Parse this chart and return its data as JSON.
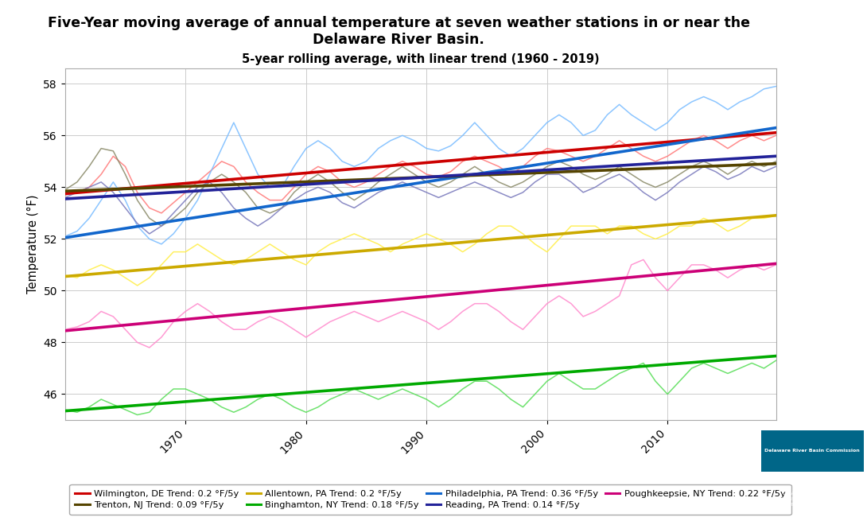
{
  "title_main": "Five-Year moving average of annual temperature at seven weather stations in or near the\nDelaware River Basin.",
  "title_chart": "5-year rolling average, with linear trend (1960 - 2019)",
  "ylabel": "Temperature (°F)",
  "xlim": [
    1960,
    2019
  ],
  "ylim": [
    45.0,
    58.6
  ],
  "yticks": [
    46,
    48,
    50,
    52,
    54,
    56,
    58
  ],
  "xticks": [
    1970,
    1980,
    1990,
    2000,
    2010
  ],
  "background_color": "#ffffff",
  "grid_color": "#cccccc",
  "rolling_colors": [
    "#ff7777",
    "#77bbff",
    "#888866",
    "#7777bb",
    "#ffee44",
    "#ff88cc",
    "#55dd55"
  ],
  "trend_colors": [
    "#cc0000",
    "#1166cc",
    "#554400",
    "#222299",
    "#ccaa00",
    "#cc0077",
    "#00aa00"
  ],
  "trend_rates": [
    0.2,
    0.36,
    0.09,
    0.14,
    0.2,
    0.22,
    0.18
  ],
  "y_starts": [
    53.75,
    52.05,
    53.85,
    53.55,
    50.55,
    48.45,
    45.35
  ],
  "legend_labels": [
    "Wilmington, DE Trend: 0.2 °F/5y",
    "Trenton, NJ Trend: 0.09 °F/5y",
    "Allentown, PA Trend: 0.2 °F/5y",
    "Binghamton, NY Trend: 0.18 °F/5y",
    "Philadelphia, PA Trend: 0.36 °F/5y",
    "Reading, PA Trend: 0.14 °F/5y",
    "Poughkeepsie, NY Trend: 0.22 °F/5y"
  ],
  "legend_colors": [
    "#cc0000",
    "#554400",
    "#ccaa00",
    "#00aa00",
    "#1166cc",
    "#222299",
    "#cc0077"
  ],
  "wilm": [
    53.7,
    53.8,
    54.0,
    54.5,
    55.2,
    54.8,
    53.8,
    53.2,
    53.0,
    53.4,
    53.8,
    54.2,
    54.6,
    55.0,
    54.8,
    54.2,
    53.8,
    53.5,
    53.5,
    54.0,
    54.5,
    54.8,
    54.6,
    54.2,
    54.0,
    54.2,
    54.5,
    54.8,
    55.0,
    54.8,
    54.5,
    54.4,
    54.6,
    55.0,
    55.2,
    55.0,
    54.8,
    54.5,
    54.8,
    55.2,
    55.5,
    55.4,
    55.2,
    55.0,
    55.2,
    55.5,
    55.8,
    55.5,
    55.2,
    55.0,
    55.2,
    55.5,
    55.8,
    56.0,
    55.8,
    55.5,
    55.8,
    56.0,
    55.8,
    56.0
  ],
  "phil": [
    52.1,
    52.3,
    52.8,
    53.5,
    54.2,
    53.5,
    52.5,
    52.0,
    51.8,
    52.2,
    52.8,
    53.5,
    54.5,
    55.5,
    56.5,
    55.5,
    54.5,
    54.0,
    54.0,
    54.8,
    55.5,
    55.8,
    55.5,
    55.0,
    54.8,
    55.0,
    55.5,
    55.8,
    56.0,
    55.8,
    55.5,
    55.4,
    55.6,
    56.0,
    56.5,
    56.0,
    55.5,
    55.2,
    55.5,
    56.0,
    56.5,
    56.8,
    56.5,
    56.0,
    56.2,
    56.8,
    57.2,
    56.8,
    56.5,
    56.2,
    56.5,
    57.0,
    57.3,
    57.5,
    57.3,
    57.0,
    57.3,
    57.5,
    57.8,
    57.9
  ],
  "tren": [
    53.9,
    54.2,
    54.8,
    55.5,
    55.4,
    54.5,
    53.5,
    52.8,
    52.5,
    52.8,
    53.2,
    53.8,
    54.2,
    54.5,
    54.2,
    53.8,
    53.2,
    53.0,
    53.2,
    53.8,
    54.2,
    54.5,
    54.2,
    53.8,
    53.5,
    53.8,
    54.2,
    54.5,
    54.8,
    54.5,
    54.2,
    54.0,
    54.2,
    54.5,
    54.8,
    54.5,
    54.2,
    54.0,
    54.2,
    54.5,
    54.8,
    55.0,
    54.8,
    54.5,
    54.3,
    54.5,
    54.8,
    54.5,
    54.2,
    54.0,
    54.2,
    54.5,
    54.8,
    55.0,
    54.8,
    54.5,
    54.8,
    55.0,
    54.8,
    55.0
  ],
  "read": [
    53.6,
    53.8,
    54.0,
    54.2,
    53.8,
    53.2,
    52.6,
    52.2,
    52.5,
    53.0,
    53.5,
    54.0,
    54.2,
    53.8,
    53.2,
    52.8,
    52.5,
    52.8,
    53.2,
    53.5,
    53.8,
    54.0,
    53.8,
    53.4,
    53.2,
    53.5,
    53.8,
    54.0,
    54.2,
    54.0,
    53.8,
    53.6,
    53.8,
    54.0,
    54.2,
    54.0,
    53.8,
    53.6,
    53.8,
    54.2,
    54.5,
    54.5,
    54.2,
    53.8,
    54.0,
    54.3,
    54.5,
    54.2,
    53.8,
    53.5,
    53.8,
    54.2,
    54.5,
    54.8,
    54.6,
    54.3,
    54.5,
    54.8,
    54.6,
    54.8
  ],
  "alle": [
    50.6,
    50.5,
    50.8,
    51.0,
    50.8,
    50.5,
    50.2,
    50.5,
    51.0,
    51.5,
    51.5,
    51.8,
    51.5,
    51.2,
    51.0,
    51.2,
    51.5,
    51.8,
    51.5,
    51.2,
    51.0,
    51.5,
    51.8,
    52.0,
    52.2,
    52.0,
    51.8,
    51.5,
    51.8,
    52.0,
    52.2,
    52.0,
    51.8,
    51.5,
    51.8,
    52.2,
    52.5,
    52.5,
    52.2,
    51.8,
    51.5,
    52.0,
    52.5,
    52.5,
    52.5,
    52.2,
    52.5,
    52.5,
    52.2,
    52.0,
    52.2,
    52.5,
    52.5,
    52.8,
    52.6,
    52.3,
    52.5,
    52.8,
    52.8,
    52.9
  ],
  "poug": [
    48.5,
    48.6,
    48.8,
    49.2,
    49.0,
    48.5,
    48.0,
    47.8,
    48.2,
    48.8,
    49.2,
    49.5,
    49.2,
    48.8,
    48.5,
    48.5,
    48.8,
    49.0,
    48.8,
    48.5,
    48.2,
    48.5,
    48.8,
    49.0,
    49.2,
    49.0,
    48.8,
    49.0,
    49.2,
    49.0,
    48.8,
    48.5,
    48.8,
    49.2,
    49.5,
    49.5,
    49.2,
    48.8,
    48.5,
    49.0,
    49.5,
    49.8,
    49.5,
    49.0,
    49.2,
    49.5,
    49.8,
    51.0,
    51.2,
    50.5,
    50.0,
    50.5,
    51.0,
    51.0,
    50.8,
    50.5,
    50.8,
    51.0,
    50.8,
    51.0
  ],
  "bing": [
    45.4,
    45.3,
    45.5,
    45.8,
    45.6,
    45.4,
    45.2,
    45.3,
    45.8,
    46.2,
    46.2,
    46.0,
    45.8,
    45.5,
    45.3,
    45.5,
    45.8,
    46.0,
    45.8,
    45.5,
    45.3,
    45.5,
    45.8,
    46.0,
    46.2,
    46.0,
    45.8,
    46.0,
    46.2,
    46.0,
    45.8,
    45.5,
    45.8,
    46.2,
    46.5,
    46.5,
    46.2,
    45.8,
    45.5,
    46.0,
    46.5,
    46.8,
    46.5,
    46.2,
    46.2,
    46.5,
    46.8,
    47.0,
    47.2,
    46.5,
    46.0,
    46.5,
    47.0,
    47.2,
    47.0,
    46.8,
    47.0,
    47.2,
    47.0,
    47.3
  ]
}
